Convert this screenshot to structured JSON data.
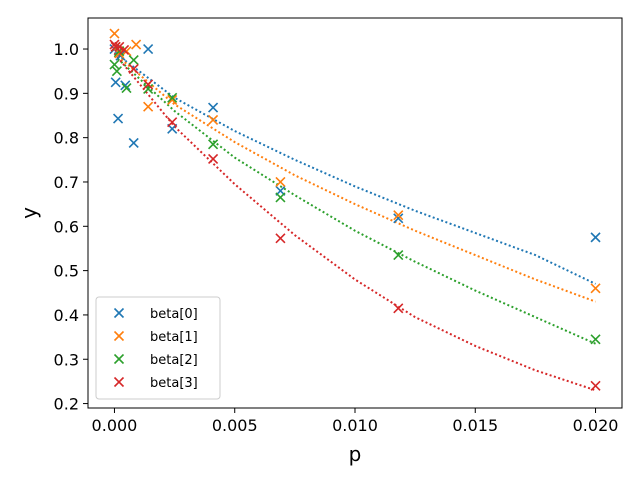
{
  "chart_data": {
    "type": "scatter",
    "title": "",
    "xlabel": "p",
    "ylabel": "y",
    "xlim": [
      -0.0011,
      0.0211
    ],
    "ylim": [
      0.19,
      1.07
    ],
    "xticks": [
      0.0,
      0.005,
      0.01,
      0.015,
      0.02
    ],
    "xtick_labels": [
      "0.000",
      "0.005",
      "0.010",
      "0.015",
      "0.020"
    ],
    "yticks": [
      0.2,
      0.3,
      0.4,
      0.5,
      0.6,
      0.7,
      0.8,
      0.9,
      1.0
    ],
    "ytick_labels": [
      "0.2",
      "0.3",
      "0.4",
      "0.5",
      "0.6",
      "0.7",
      "0.8",
      "0.9",
      "1.0"
    ],
    "grid": false,
    "legend_position": "lower-left",
    "series": [
      {
        "name": "beta[0]",
        "color": "#1f77b4",
        "points": [
          [
            0.0,
            1.0
          ],
          [
            5e-05,
            0.925
          ],
          [
            0.00015,
            0.843
          ],
          [
            0.00025,
            0.985
          ],
          [
            0.00045,
            0.918
          ],
          [
            0.0008,
            0.788
          ],
          [
            0.0014,
            1.0
          ],
          [
            0.0024,
            0.82
          ],
          [
            0.0041,
            0.868
          ],
          [
            0.0069,
            0.68
          ],
          [
            0.0118,
            0.618
          ],
          [
            0.02,
            0.575
          ]
        ],
        "fit": [
          [
            0.0,
            0.992
          ],
          [
            0.0025,
            0.89
          ],
          [
            0.005,
            0.815
          ],
          [
            0.0075,
            0.75
          ],
          [
            0.01,
            0.69
          ],
          [
            0.0125,
            0.635
          ],
          [
            0.015,
            0.585
          ],
          [
            0.0175,
            0.535
          ],
          [
            0.02,
            0.47
          ]
        ]
      },
      {
        "name": "beta[1]",
        "color": "#ff7f0e",
        "points": [
          [
            0.0,
            1.035
          ],
          [
            5e-05,
            1.005
          ],
          [
            0.0002,
            0.99
          ],
          [
            0.0005,
            0.995
          ],
          [
            0.0009,
            1.01
          ],
          [
            0.0014,
            0.87
          ],
          [
            0.0024,
            0.885
          ],
          [
            0.0041,
            0.84
          ],
          [
            0.0069,
            0.7
          ],
          [
            0.0118,
            0.625
          ],
          [
            0.02,
            0.46
          ]
        ],
        "fit": [
          [
            0.0,
            0.99
          ],
          [
            0.0025,
            0.875
          ],
          [
            0.005,
            0.79
          ],
          [
            0.0075,
            0.715
          ],
          [
            0.01,
            0.65
          ],
          [
            0.0125,
            0.59
          ],
          [
            0.015,
            0.535
          ],
          [
            0.0175,
            0.48
          ],
          [
            0.02,
            0.43
          ]
        ]
      },
      {
        "name": "beta[2]",
        "color": "#2ca02c",
        "points": [
          [
            0.0,
            0.965
          ],
          [
            0.0001,
            0.95
          ],
          [
            0.0002,
            0.995
          ],
          [
            0.0005,
            0.912
          ],
          [
            0.0008,
            0.975
          ],
          [
            0.0014,
            0.91
          ],
          [
            0.0024,
            0.89
          ],
          [
            0.0041,
            0.785
          ],
          [
            0.0069,
            0.665
          ],
          [
            0.0118,
            0.535
          ],
          [
            0.02,
            0.345
          ]
        ],
        "fit": [
          [
            0.0,
            0.985
          ],
          [
            0.0025,
            0.86
          ],
          [
            0.005,
            0.755
          ],
          [
            0.0075,
            0.67
          ],
          [
            0.01,
            0.59
          ],
          [
            0.0125,
            0.52
          ],
          [
            0.015,
            0.455
          ],
          [
            0.0175,
            0.395
          ],
          [
            0.02,
            0.335
          ]
        ]
      },
      {
        "name": "beta[3]",
        "color": "#d62728",
        "points": [
          [
            0.0,
            1.01
          ],
          [
            5e-05,
            1.005
          ],
          [
            0.0002,
            1.005
          ],
          [
            0.0004,
            0.998
          ],
          [
            0.0008,
            0.955
          ],
          [
            0.0014,
            0.92
          ],
          [
            0.0024,
            0.835
          ],
          [
            0.0041,
            0.752
          ],
          [
            0.0069,
            0.573
          ],
          [
            0.0118,
            0.415
          ],
          [
            0.02,
            0.24
          ]
        ],
        "fit": [
          [
            0.0,
            0.99
          ],
          [
            0.0025,
            0.825
          ],
          [
            0.005,
            0.695
          ],
          [
            0.0075,
            0.58
          ],
          [
            0.01,
            0.48
          ],
          [
            0.0125,
            0.395
          ],
          [
            0.015,
            0.33
          ],
          [
            0.0175,
            0.275
          ],
          [
            0.02,
            0.23
          ]
        ]
      }
    ]
  }
}
